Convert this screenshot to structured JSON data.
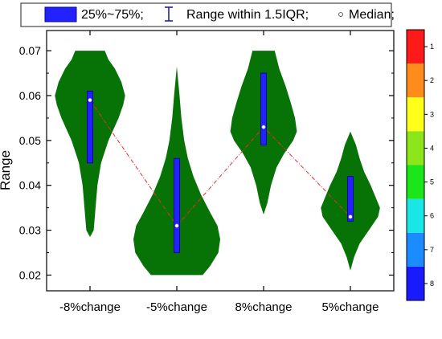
{
  "chart_data": {
    "type": "violin",
    "ylabel": "Range",
    "xlabel": "",
    "title": "",
    "ylim": [
      0.0165,
      0.0745
    ],
    "yticks": [
      "0.02",
      "0.03",
      "0.04",
      "0.05",
      "0.06",
      "0.07"
    ],
    "categories": [
      "-8%change",
      "-5%change",
      "8%change",
      "5%change"
    ],
    "violins": [
      {
        "min": 0.0285,
        "max": 0.07,
        "q1": 0.045,
        "q3": 0.061,
        "median": 0.059,
        "profile": [
          [
            0.0285,
            0.0
          ],
          [
            0.03,
            0.004
          ],
          [
            0.035,
            0.006
          ],
          [
            0.04,
            0.008
          ],
          [
            0.045,
            0.012
          ],
          [
            0.05,
            0.02
          ],
          [
            0.055,
            0.031
          ],
          [
            0.058,
            0.036
          ],
          [
            0.06,
            0.038
          ],
          [
            0.063,
            0.034
          ],
          [
            0.066,
            0.027
          ],
          [
            0.068,
            0.02
          ],
          [
            0.07,
            0.016
          ]
        ]
      },
      {
        "min": 0.02,
        "max": 0.0665,
        "q1": 0.025,
        "q3": 0.046,
        "median": 0.031,
        "profile": [
          [
            0.02,
            0.028
          ],
          [
            0.022,
            0.036
          ],
          [
            0.025,
            0.045
          ],
          [
            0.028,
            0.047
          ],
          [
            0.031,
            0.044
          ],
          [
            0.034,
            0.036
          ],
          [
            0.038,
            0.026
          ],
          [
            0.042,
            0.018
          ],
          [
            0.046,
            0.012
          ],
          [
            0.05,
            0.008
          ],
          [
            0.055,
            0.005
          ],
          [
            0.06,
            0.003
          ],
          [
            0.0665,
            0.0
          ]
        ]
      },
      {
        "min": 0.0335,
        "max": 0.07,
        "q1": 0.049,
        "q3": 0.065,
        "median": 0.053,
        "profile": [
          [
            0.0335,
            0.0
          ],
          [
            0.036,
            0.004
          ],
          [
            0.04,
            0.008
          ],
          [
            0.044,
            0.014
          ],
          [
            0.047,
            0.022
          ],
          [
            0.05,
            0.032
          ],
          [
            0.052,
            0.036
          ],
          [
            0.055,
            0.034
          ],
          [
            0.058,
            0.03
          ],
          [
            0.062,
            0.024
          ],
          [
            0.066,
            0.017
          ],
          [
            0.07,
            0.012
          ]
        ]
      },
      {
        "min": 0.021,
        "max": 0.052,
        "q1": 0.032,
        "q3": 0.042,
        "median": 0.033,
        "profile": [
          [
            0.021,
            0.0
          ],
          [
            0.024,
            0.004
          ],
          [
            0.027,
            0.01
          ],
          [
            0.03,
            0.02
          ],
          [
            0.033,
            0.03
          ],
          [
            0.035,
            0.032
          ],
          [
            0.037,
            0.028
          ],
          [
            0.04,
            0.022
          ],
          [
            0.043,
            0.015
          ],
          [
            0.046,
            0.01
          ],
          [
            0.049,
            0.006
          ],
          [
            0.052,
            0.0
          ]
        ]
      }
    ],
    "median_line": "dash-dot, red",
    "legend": {
      "position": "top",
      "entries": [
        "25%~75%;",
        "Range within 1.5IQR;",
        "Median;"
      ]
    },
    "colorbar": {
      "position": "right",
      "labels": [
        "1",
        "2",
        "3",
        "4",
        "5",
        "6",
        "7",
        "8"
      ],
      "colors": [
        "#ff1a1a",
        "#ff8c1a",
        "#ffff1a",
        "#8ce61a",
        "#1ae61a",
        "#1ae6e6",
        "#1a8cff",
        "#1a1aff"
      ]
    },
    "colors": {
      "violin": "#077307",
      "box": "#2222ff",
      "box_edge": "#0a0a8c",
      "median_line": "#e03030"
    }
  }
}
